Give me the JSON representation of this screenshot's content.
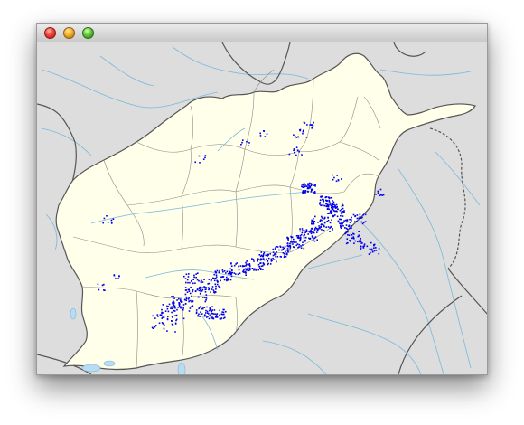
{
  "window": {
    "buttons": [
      "close",
      "minimize",
      "zoom"
    ]
  },
  "map": {
    "country_fill": "#ffffea",
    "neighbor_fill": "#dddddd",
    "border_color": "#555555",
    "province_line_color": "#777777",
    "river_color": "#7ab8dc",
    "marker_color": "#0000ee",
    "shadow_color": "#000000"
  }
}
